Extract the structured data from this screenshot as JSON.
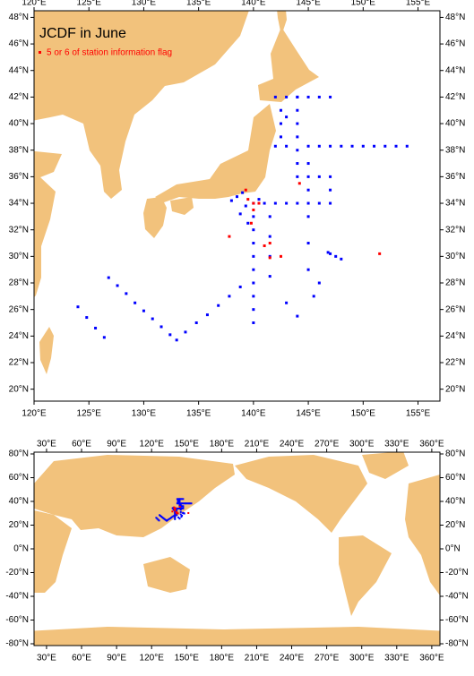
{
  "chart_data": [
    {
      "type": "map",
      "title": "JCDF in June",
      "legend": "5 or 6 of station information flag",
      "xlim": [
        120,
        157
      ],
      "ylim": [
        19.1,
        48.5
      ],
      "xticks": [
        {
          "value": 120,
          "label": "120°E"
        },
        {
          "value": 125,
          "label": "125°E"
        },
        {
          "value": 130,
          "label": "130°E"
        },
        {
          "value": 135,
          "label": "135°E"
        },
        {
          "value": 140,
          "label": "140°E"
        },
        {
          "value": 145,
          "label": "145°E"
        },
        {
          "value": 150,
          "label": "150°E"
        },
        {
          "value": 155,
          "label": "155°E"
        }
      ],
      "yticks": [
        {
          "value": 20,
          "label": "20°N"
        },
        {
          "value": 22,
          "label": "22°N"
        },
        {
          "value": 24,
          "label": "24°N"
        },
        {
          "value": 26,
          "label": "26°N"
        },
        {
          "value": 28,
          "label": "28°N"
        },
        {
          "value": 30,
          "label": "30°N"
        },
        {
          "value": 32,
          "label": "32°N"
        },
        {
          "value": 34,
          "label": "34°N"
        },
        {
          "value": 36,
          "label": "36°N"
        },
        {
          "value": 38,
          "label": "38°N"
        },
        {
          "value": 40,
          "label": "40°N"
        },
        {
          "value": 42,
          "label": "42°N"
        },
        {
          "value": 44,
          "label": "44°N"
        },
        {
          "value": 46,
          "label": "46°N"
        },
        {
          "value": 48,
          "label": "48°N"
        }
      ],
      "series": [
        {
          "color": "#0000ff",
          "lon": [
            126.8,
            127.6,
            128.4,
            129.2,
            130,
            130.8,
            131.6,
            132.4,
            133,
            124,
            124.8,
            125.6,
            126.4,
            133.8,
            134.8,
            135.8,
            136.8,
            137.8,
            138.8,
            140,
            140,
            140,
            140,
            140,
            140,
            140,
            140,
            140,
            140,
            141.5,
            141.5,
            141.5,
            141.5,
            138,
            138.5,
            139,
            139.3,
            138.8,
            139.5,
            140.5,
            141,
            142,
            143,
            144,
            145,
            144,
            144,
            144,
            144,
            144,
            144,
            144,
            142,
            143,
            145,
            146,
            147,
            148,
            149,
            150,
            151,
            152,
            153,
            154,
            145,
            145,
            145,
            145,
            145,
            145,
            146,
            147,
            147,
            147,
            146,
            142,
            143,
            144,
            145,
            146,
            147,
            142.5,
            142.5,
            142.5,
            143,
            147,
            147.5,
            148,
            146.8,
            143,
            144,
            146,
            145.5
          ],
          "lat": [
            28.4,
            27.8,
            27.2,
            26.5,
            25.9,
            25.3,
            24.7,
            24.1,
            23.7,
            26.2,
            25.4,
            24.6,
            23.9,
            24.3,
            25,
            25.6,
            26.3,
            27,
            27.7,
            34,
            33,
            32,
            31,
            30,
            29,
            28,
            27,
            26,
            25,
            33,
            31.5,
            30,
            28.5,
            34.2,
            34.5,
            34.8,
            33.8,
            33.2,
            32.5,
            34.3,
            34,
            34,
            34,
            34,
            34,
            36,
            37,
            38,
            39,
            40,
            41,
            42,
            38.3,
            38.3,
            38.3,
            38.3,
            38.3,
            38.3,
            38.3,
            38.3,
            38.3,
            38.3,
            38.3,
            38.3,
            37,
            36,
            35,
            33,
            31,
            29,
            36,
            36,
            35,
            34,
            34,
            42,
            42,
            42,
            42,
            42,
            42,
            41,
            40,
            39,
            40.5,
            30.2,
            30,
            29.8,
            30.3,
            26.5,
            25.5,
            28,
            27
          ]
        },
        {
          "name": "5 or 6 of station information flag",
          "color": "#ff0000",
          "lon": [
            139.3,
            140,
            140,
            140.5,
            139.8,
            141,
            141.5,
            141.5,
            142.5,
            137.8,
            144.2,
            151.5,
            139.5
          ],
          "lat": [
            35,
            34,
            33.5,
            34,
            32.5,
            30.8,
            31,
            29.9,
            30,
            31.5,
            35.5,
            30.2,
            34.3
          ]
        }
      ]
    },
    {
      "type": "map",
      "xlim": [
        19.3,
        367
      ],
      "ylim": [
        -81.5,
        81.5
      ],
      "xticks": [
        {
          "value": 30,
          "label": "30°E"
        },
        {
          "value": 60,
          "label": "60°E"
        },
        {
          "value": 90,
          "label": "90°E"
        },
        {
          "value": 120,
          "label": "120°E"
        },
        {
          "value": 150,
          "label": "150°E"
        },
        {
          "value": 180,
          "label": "180°E"
        },
        {
          "value": 210,
          "label": "210°E"
        },
        {
          "value": 240,
          "label": "240°E"
        },
        {
          "value": 270,
          "label": "270°E"
        },
        {
          "value": 300,
          "label": "300°E"
        },
        {
          "value": 330,
          "label": "330°E"
        },
        {
          "value": 360,
          "label": "360°E"
        }
      ],
      "yticks": [
        {
          "value": -80,
          "label": "-80°N"
        },
        {
          "value": -60,
          "label": "-60°N"
        },
        {
          "value": -40,
          "label": "-40°N"
        },
        {
          "value": -20,
          "label": "-20°N"
        },
        {
          "value": 0,
          "label": "0°N"
        },
        {
          "value": 20,
          "label": "20°N"
        },
        {
          "value": 40,
          "label": "40°N"
        },
        {
          "value": 60,
          "label": "60°N"
        },
        {
          "value": 80,
          "label": "80°N"
        }
      ]
    }
  ]
}
